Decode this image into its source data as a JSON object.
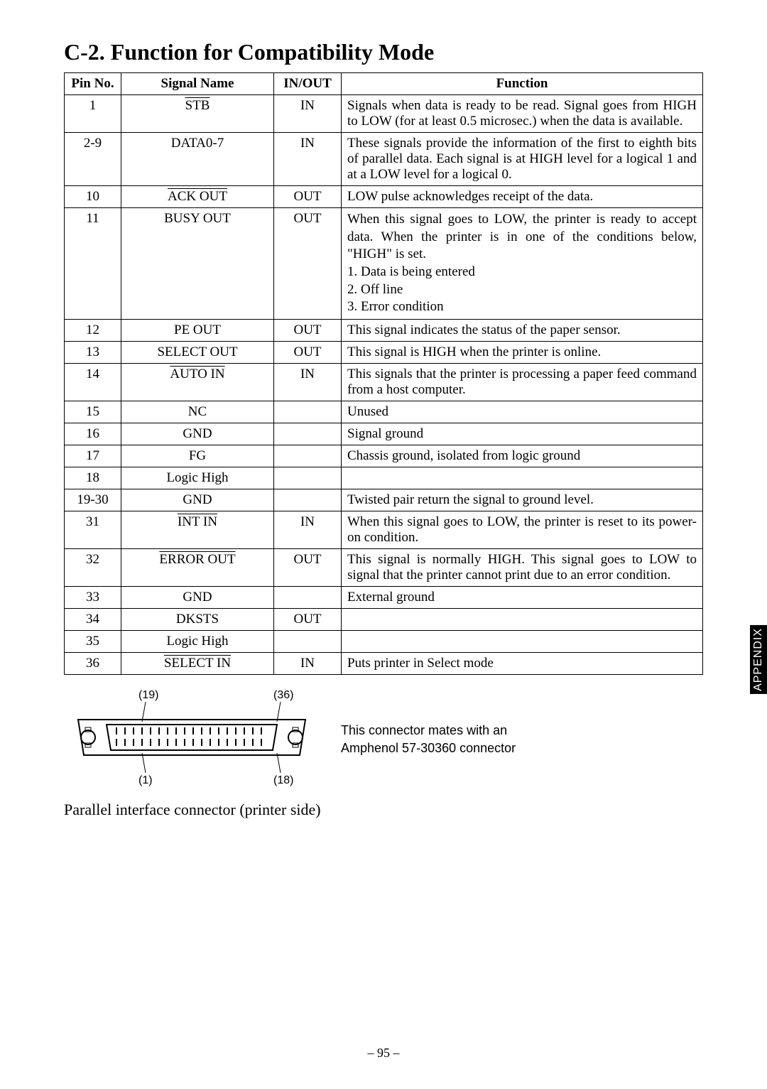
{
  "title": "C-2. Function for Compatibility Mode",
  "table": {
    "headers": [
      "Pin No.",
      "Signal Name",
      "IN/OUT",
      "Function"
    ],
    "rows": [
      {
        "pin": "1",
        "signal": "STB",
        "over": true,
        "io": "IN",
        "fn": "Signals when data is ready to be read. Signal goes from HIGH to LOW (for at least 0.5 microsec.) when the data is available."
      },
      {
        "pin": "2-9",
        "signal": "DATA0-7",
        "over": false,
        "io": "IN",
        "fn": "These signals provide the information of the first to eighth bits of parallel data. Each signal is at HIGH level for a logical 1 and at a LOW level for a logical 0."
      },
      {
        "pin": "10",
        "signal": "ACK OUT",
        "over": true,
        "io": "OUT",
        "fn": "LOW pulse acknowledges receipt of the data."
      },
      {
        "pin": "11",
        "signal": "BUSY OUT",
        "over": false,
        "io": "OUT",
        "fn_lines": [
          "When this signal goes to LOW, the printer is ready to accept data. When the printer is in one of the conditions below, \"HIGH\" is set.",
          "1. Data is being entered",
          "2. Off line",
          "3. Error condition"
        ]
      },
      {
        "pin": "12",
        "signal": "PE OUT",
        "over": false,
        "io": "OUT",
        "fn": "This signal indicates the status of the paper sensor."
      },
      {
        "pin": "13",
        "signal": "SELECT OUT",
        "over": false,
        "io": "OUT",
        "fn": "This signal is HIGH when the printer is online."
      },
      {
        "pin": "14",
        "signal": "AUTO IN",
        "over": true,
        "io": "IN",
        "fn": "This signals that the printer is processing a paper feed command from a host computer."
      },
      {
        "pin": "15",
        "signal": "NC",
        "over": false,
        "io": "",
        "fn": "Unused"
      },
      {
        "pin": "16",
        "signal": "GND",
        "over": false,
        "io": "",
        "fn": "Signal ground"
      },
      {
        "pin": "17",
        "signal": "FG",
        "over": false,
        "io": "",
        "fn": "Chassis ground, isolated from logic ground"
      },
      {
        "pin": "18",
        "signal": "Logic High",
        "over": false,
        "io": "",
        "fn": ""
      },
      {
        "pin": "19-30",
        "signal": "GND",
        "over": false,
        "io": "",
        "fn": "Twisted pair return the signal to ground level."
      },
      {
        "pin": "31",
        "signal": "INT IN",
        "over": true,
        "io": "IN",
        "fn": "When this signal goes to LOW, the printer is reset to its power-on condition."
      },
      {
        "pin": "32",
        "signal": "ERROR OUT",
        "over": true,
        "io": "OUT",
        "fn": "This signal is normally HIGH. This signal goes to LOW to signal that the printer cannot print due to an error condition."
      },
      {
        "pin": "33",
        "signal": "GND",
        "over": false,
        "io": "",
        "fn": "External ground"
      },
      {
        "pin": "34",
        "signal": "DKSTS",
        "over": false,
        "io": "OUT",
        "fn": ""
      },
      {
        "pin": "35",
        "signal": "Logic High",
        "over": false,
        "io": "",
        "fn": ""
      },
      {
        "pin": "36",
        "signal": "SELECT IN",
        "over": true,
        "io": "IN",
        "fn": "Puts printer in Select mode"
      }
    ]
  },
  "connector": {
    "pin_labels": {
      "tl": "(19)",
      "tr": "(36)",
      "bl": "(1)",
      "br": "(18)"
    },
    "note_line1": "This connector mates with an",
    "note_line2": "Amphenol 57-30360 connector",
    "caption": "Parallel interface connector (printer side)"
  },
  "side_tab": "APPENDIX",
  "page_number": "– 95 –",
  "colors": {
    "ink": "#000000",
    "paper": "#ffffff"
  }
}
